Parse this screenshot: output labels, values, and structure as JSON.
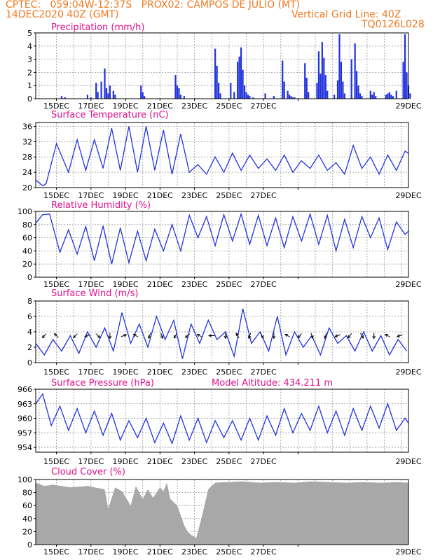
{
  "header": {
    "line1": "CPTEC:   059:04W-12:37S   PROX02: CAMPOS DE JULIO (MT)",
    "date": "14DEC2020 40Z (GMT)",
    "grid_note": "Vertical Grid Line: 40Z",
    "code": "TQ0126L028"
  },
  "colors": {
    "header": "#f07820",
    "title": "#e0128c",
    "series": "#2233dd",
    "cloud": "#a8a8a8"
  },
  "x_tick_labels": [
    "15DEC",
    "17DEC",
    "19DEC",
    "21DEC",
    "23DEC",
    "25DEC",
    "27DEC",
    "29DEC"
  ],
  "chart_data": [
    {
      "type": "bar",
      "title": "Precipitation (mm/h)",
      "ylim": [
        0,
        5
      ],
      "yticks": [
        "0",
        "1",
        "2",
        "3",
        "4",
        "5"
      ],
      "x_days": [
        1.5,
        1.7,
        3.0,
        3.2,
        3.5,
        3.6,
        3.8,
        4.0,
        4.1,
        4.2,
        4.3,
        4.5,
        4.6,
        6.1,
        6.2,
        6.3,
        8.1,
        8.2,
        8.3,
        8.4,
        8.6,
        10.4,
        10.5,
        10.6,
        10.7,
        11.3,
        11.5,
        11.7,
        11.8,
        11.9,
        12.0,
        12.1,
        12.2,
        12.3,
        12.4,
        12.6,
        13.3,
        13.8,
        14.3,
        14.4,
        14.6,
        14.7,
        14.8,
        14.9,
        15.0,
        15.6,
        15.7,
        15.8,
        16.3,
        16.4,
        16.5,
        16.6,
        16.7,
        16.8,
        16.9,
        17.3,
        17.5,
        17.6,
        17.7,
        17.8,
        17.9,
        18.3,
        18.5,
        18.6,
        18.7,
        18.8,
        18.9,
        19.4,
        19.5,
        19.6,
        19.7,
        20.3,
        20.4,
        20.5,
        20.6,
        20.7,
        20.9,
        21.3,
        21.4,
        21.5,
        21.6,
        21.7
      ],
      "values": [
        0.2,
        0.1,
        0.3,
        0.1,
        1.2,
        0.5,
        1.3,
        2.3,
        0.8,
        0.4,
        1.0,
        0.6,
        0.3,
        1.0,
        0.5,
        0.2,
        1.8,
        1.0,
        0.8,
        0.3,
        0.2,
        3.8,
        2.5,
        1.2,
        0.4,
        1.2,
        0.5,
        2.8,
        3.2,
        3.9,
        2.2,
        1.0,
        0.5,
        0.3,
        0.2,
        0.1,
        0.4,
        0.2,
        2.9,
        1.3,
        0.6,
        0.3,
        0.2,
        0.1,
        0.1,
        2.7,
        1.6,
        0.5,
        1.2,
        3.6,
        1.9,
        4.3,
        3.1,
        1.8,
        0.6,
        0.3,
        1.4,
        4.9,
        2.8,
        1.3,
        0.4,
        3.0,
        4.2,
        2.1,
        1.0,
        0.4,
        0.2,
        0.6,
        0.3,
        0.5,
        0.2,
        0.3,
        0.4,
        0.5,
        0.3,
        0.2,
        0.6,
        2.8,
        4.9,
        2.0,
        1.0,
        0.4
      ]
    },
    {
      "type": "line",
      "title": "Surface Temperature (nC)",
      "ylim": [
        20,
        37
      ],
      "yticks": [
        "20",
        "24",
        "28",
        "32",
        "36"
      ],
      "x_days": [
        0.0,
        0.4,
        0.6,
        1.2,
        1.9,
        2.4,
        2.9,
        3.4,
        3.9,
        4.4,
        4.9,
        5.4,
        5.9,
        6.4,
        6.9,
        7.4,
        7.9,
        8.4,
        8.9,
        9.4,
        9.9,
        10.4,
        10.9,
        11.4,
        11.9,
        12.4,
        12.9,
        13.4,
        13.9,
        14.4,
        14.9,
        15.4,
        15.9,
        16.4,
        16.9,
        17.4,
        17.9,
        18.4,
        18.9,
        19.4,
        19.9,
        20.4,
        20.9,
        21.4,
        21.6
      ],
      "values": [
        22.0,
        20.5,
        21.0,
        31.5,
        24.0,
        32.5,
        24.5,
        32.5,
        25.0,
        35.5,
        24.5,
        36.0,
        24.0,
        36.0,
        24.5,
        35.0,
        23.5,
        34.0,
        24.0,
        26.0,
        23.5,
        28.0,
        24.0,
        29.0,
        24.5,
        28.5,
        25.0,
        27.5,
        24.5,
        28.5,
        24.0,
        27.0,
        25.0,
        28.5,
        24.5,
        26.5,
        23.5,
        31.0,
        25.0,
        28.0,
        23.5,
        28.5,
        24.5,
        29.5,
        29.0
      ]
    },
    {
      "type": "line",
      "title": "Relative Humidity (%)",
      "ylim": [
        0,
        100
      ],
      "yticks": [
        "0",
        "20",
        "40",
        "60",
        "80",
        "100"
      ],
      "x_days": [
        0.0,
        0.4,
        0.8,
        1.4,
        1.9,
        2.4,
        2.9,
        3.4,
        3.9,
        4.4,
        4.9,
        5.4,
        5.9,
        6.4,
        6.9,
        7.4,
        7.9,
        8.4,
        8.9,
        9.4,
        9.9,
        10.4,
        10.9,
        11.4,
        11.9,
        12.4,
        12.9,
        13.4,
        13.9,
        14.4,
        14.9,
        15.4,
        15.9,
        16.4,
        16.9,
        17.4,
        17.9,
        18.4,
        18.9,
        19.4,
        19.9,
        20.4,
        20.9,
        21.4,
        21.6
      ],
      "values": [
        82,
        95,
        96,
        38,
        72,
        35,
        77,
        25,
        78,
        20,
        75,
        22,
        70,
        25,
        73,
        40,
        80,
        40,
        94,
        60,
        92,
        48,
        95,
        55,
        96,
        50,
        94,
        48,
        90,
        45,
        92,
        55,
        96,
        50,
        94,
        40,
        88,
        45,
        92,
        60,
        90,
        42,
        84,
        65,
        70
      ]
    },
    {
      "type": "line",
      "title": "Surface Wind (m/s)",
      "ylim": [
        0,
        8
      ],
      "yticks": [
        "0",
        "2",
        "4",
        "6",
        "8"
      ],
      "x_days": [
        0.0,
        0.5,
        1.0,
        1.5,
        2.0,
        2.5,
        3.0,
        3.5,
        4.0,
        4.5,
        5.0,
        5.5,
        6.0,
        6.5,
        7.0,
        7.5,
        8.0,
        8.5,
        9.0,
        9.5,
        10.0,
        10.5,
        11.0,
        11.5,
        12.0,
        12.5,
        13.0,
        13.5,
        14.0,
        14.5,
        15.0,
        15.5,
        16.0,
        16.5,
        17.0,
        17.5,
        18.0,
        18.5,
        19.0,
        19.5,
        20.0,
        20.5,
        21.0,
        21.5
      ],
      "values": [
        2.5,
        1.0,
        3.0,
        1.5,
        3.5,
        1.2,
        4.0,
        2.0,
        4.5,
        1.5,
        6.5,
        2.5,
        5.0,
        2.0,
        6.0,
        3.0,
        5.5,
        0.5,
        5.0,
        2.5,
        5.5,
        3.0,
        4.0,
        0.8,
        7.0,
        2.5,
        4.0,
        1.5,
        6.0,
        1.0,
        4.0,
        2.0,
        3.5,
        1.0,
        4.5,
        2.5,
        3.5,
        1.5,
        4.0,
        1.5,
        3.5,
        1.0,
        3.0,
        1.5
      ],
      "arrows_x_days": [
        0.5,
        1.2,
        2.3,
        3.0,
        3.6,
        4.3,
        5.1,
        5.8,
        6.6,
        7.3,
        8.1,
        8.8,
        9.5,
        10.2,
        11.0,
        11.7,
        12.4,
        13.1,
        13.8,
        14.6,
        15.3,
        16.0,
        16.8,
        17.5,
        18.2,
        18.9,
        19.6,
        20.4,
        21.1
      ],
      "arrows_dir_deg": [
        225,
        315,
        225,
        250,
        135,
        180,
        70,
        300,
        200,
        160,
        210,
        230,
        300,
        270,
        180,
        330,
        200,
        150,
        180,
        300,
        220,
        160,
        200,
        250,
        220,
        150,
        180,
        300,
        250
      ]
    },
    {
      "type": "line",
      "title": "Surface Pressure (hPa)",
      "annotation": "Model Altitude: 434.211 m",
      "ylim": [
        953,
        966
      ],
      "yticks": [
        "954",
        "957",
        "960",
        "963",
        "966"
      ],
      "x_days": [
        0.0,
        0.4,
        0.9,
        1.4,
        1.9,
        2.4,
        2.9,
        3.4,
        3.9,
        4.4,
        4.9,
        5.4,
        5.9,
        6.4,
        6.9,
        7.4,
        7.9,
        8.4,
        8.9,
        9.4,
        9.9,
        10.4,
        10.9,
        11.4,
        11.9,
        12.4,
        12.9,
        13.4,
        13.9,
        14.4,
        14.9,
        15.4,
        15.9,
        16.4,
        16.9,
        17.4,
        17.9,
        18.4,
        18.9,
        19.4,
        19.9,
        20.4,
        20.9,
        21.4,
        21.6
      ],
      "values": [
        963.0,
        965.0,
        958.5,
        962.5,
        957.5,
        962.0,
        957.0,
        961.5,
        956.5,
        961.0,
        955.5,
        959.5,
        956.0,
        960.0,
        955.0,
        959.0,
        954.8,
        960.5,
        955.5,
        960.0,
        955.0,
        959.5,
        956.0,
        959.5,
        955.5,
        960.0,
        955.5,
        960.5,
        956.5,
        962.0,
        957.0,
        961.0,
        957.5,
        962.5,
        957.0,
        961.5,
        956.5,
        962.0,
        957.5,
        962.5,
        958.0,
        963.0,
        957.5,
        960.0,
        959.0
      ]
    },
    {
      "type": "area",
      "title": "Cloud Cover (%)",
      "ylim": [
        0,
        100
      ],
      "yticks": [
        "0",
        "20",
        "40",
        "60",
        "80",
        "100"
      ],
      "x_days": [
        0.0,
        0.5,
        1.0,
        2.0,
        3.0,
        4.0,
        4.2,
        4.6,
        5.0,
        5.5,
        5.8,
        6.2,
        6.5,
        6.8,
        7.0,
        7.2,
        7.4,
        7.6,
        7.8,
        8.0,
        8.2,
        8.4,
        8.6,
        8.8,
        9.0,
        9.3,
        9.6,
        10.0,
        10.4,
        11.0,
        12.0,
        13.0,
        14.0,
        15.0,
        16.0,
        17.0,
        18.0,
        19.0,
        20.0,
        21.0,
        21.6
      ],
      "values": [
        95,
        90,
        92,
        88,
        90,
        85,
        55,
        88,
        82,
        60,
        90,
        70,
        85,
        72,
        80,
        88,
        82,
        95,
        70,
        65,
        60,
        45,
        30,
        20,
        15,
        10,
        40,
        85,
        95,
        96,
        97,
        95,
        96,
        95,
        97,
        96,
        95,
        96,
        95,
        96,
        95
      ]
    }
  ]
}
